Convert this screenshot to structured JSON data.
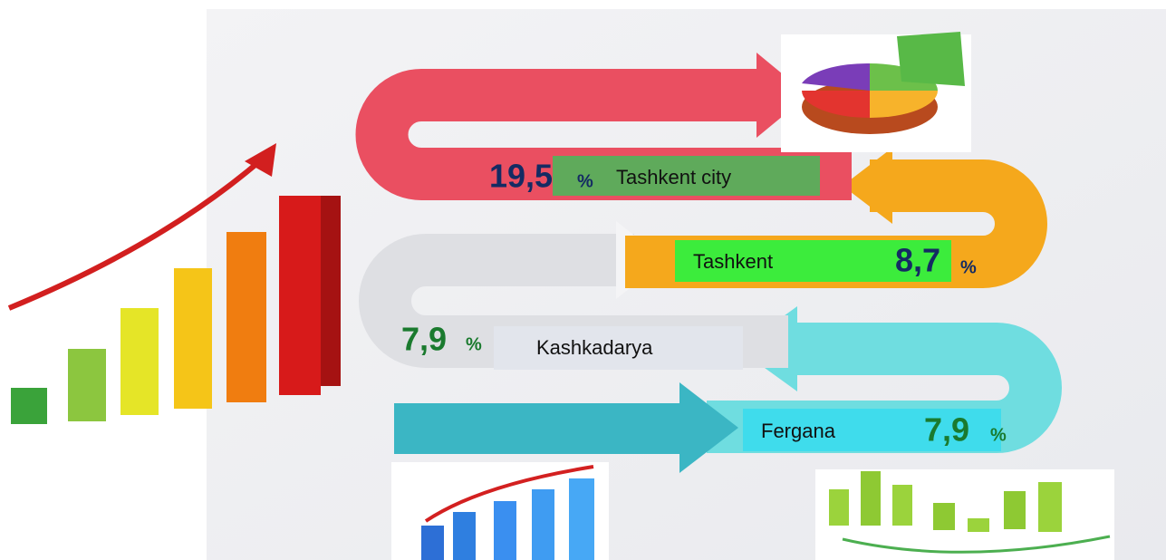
{
  "items": [
    {
      "value": "19,5",
      "unit": "%",
      "label": "Tashkent city"
    },
    {
      "value": "8,7",
      "unit": "%",
      "label": "Tashkent"
    },
    {
      "value": "7,9",
      "unit": "%",
      "label": "Kashkadarya"
    },
    {
      "value": "7,9",
      "unit": "%",
      "label": "Fergana"
    }
  ]
}
